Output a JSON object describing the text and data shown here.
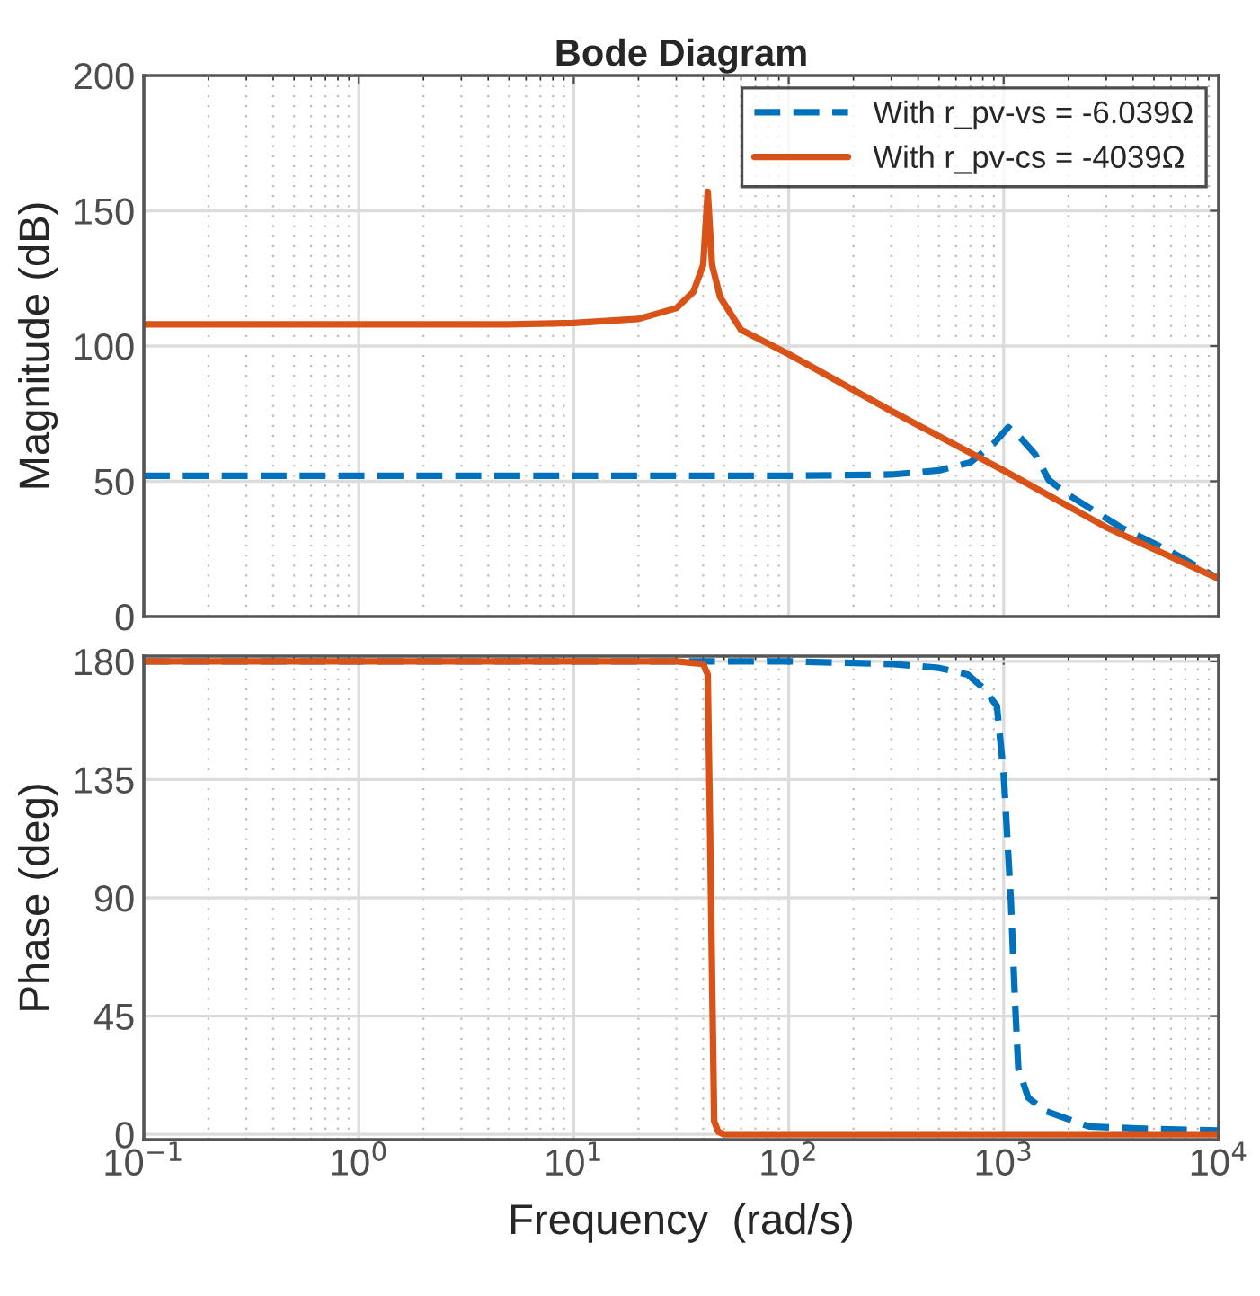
{
  "chart_data": [
    {
      "type": "line",
      "title": "Bode Diagram",
      "ylabel": "Magnitude (dB)",
      "log": "x",
      "grid": true,
      "legend": "top right",
      "tick_labels": "y",
      "xlim": [
        0.1,
        10000
      ],
      "xticks": [
        0.1,
        1,
        10,
        100,
        1000,
        10000
      ],
      "ylim": [
        0,
        200
      ],
      "yticks": [
        0,
        50,
        100,
        150,
        200
      ],
      "series": [
        {
          "name": "With r_pv-vs = -6.039Ω",
          "color": "#0072bd",
          "line_style": "dashed",
          "x": [
            0.1,
            1,
            10,
            100,
            300,
            500,
            700,
            900,
            1050,
            1200,
            1400,
            1620,
            2000,
            3500,
            6000,
            10000
          ],
          "values": [
            52,
            52,
            52,
            52,
            52.5,
            54,
            57,
            64,
            70,
            66,
            60,
            50.5,
            45,
            33,
            24,
            14
          ]
        },
        {
          "name": "With r_pv-cs = -4039Ω",
          "color": "#d95319",
          "line_style": "solid",
          "x": [
            0.1,
            1,
            5,
            10,
            20,
            30,
            36,
            40,
            42,
            44,
            48,
            60,
            100,
            300,
            1000,
            3000,
            10000
          ],
          "values": [
            108,
            108,
            108,
            108.5,
            110,
            114,
            120,
            130,
            157,
            130,
            118,
            106,
            97,
            76,
            54,
            33,
            14
          ]
        }
      ]
    },
    {
      "type": "line",
      "ylabel": "Phase (deg)",
      "xlabel": "Frequency  (rad/s)",
      "log": "x",
      "grid": true,
      "xlim": [
        0.1,
        10000
      ],
      "xticks": [
        {
          "value": 0.1,
          "label": "10$^{−1}$"
        },
        {
          "value": 1,
          "label": "10$^{0}$"
        },
        {
          "value": 10,
          "label": "10$^{1}$"
        },
        {
          "value": 100,
          "label": "10$^{2}$"
        },
        {
          "value": 1000,
          "label": "10$^{3}$"
        },
        {
          "value": 10000,
          "label": "10$^{4}$"
        }
      ],
      "ylim": [
        -2,
        182
      ],
      "yticks": [
        0,
        45,
        90,
        135,
        180
      ],
      "series": [
        {
          "color": "#0072bd",
          "line_style": "dashed",
          "x": [
            0.1,
            1,
            10,
            100,
            300,
            500,
            680,
            800,
            930,
            1000,
            1080,
            1130,
            1170,
            1300,
            1550,
            2500,
            5000,
            10000
          ],
          "values": [
            180,
            180,
            180,
            180,
            179,
            177.5,
            175,
            170,
            163,
            137,
            89,
            50,
            25,
            14,
            9,
            3,
            2,
            1.5
          ]
        },
        {
          "color": "#d95319",
          "line_style": "solid",
          "x": [
            0.1,
            1,
            10,
            30,
            40,
            42,
            43,
            44,
            45,
            47,
            50,
            100,
            1000,
            10000
          ],
          "values": [
            180,
            180,
            180,
            180,
            179,
            175,
            120,
            60,
            5,
            1,
            0,
            0,
            0,
            0
          ]
        }
      ]
    }
  ]
}
